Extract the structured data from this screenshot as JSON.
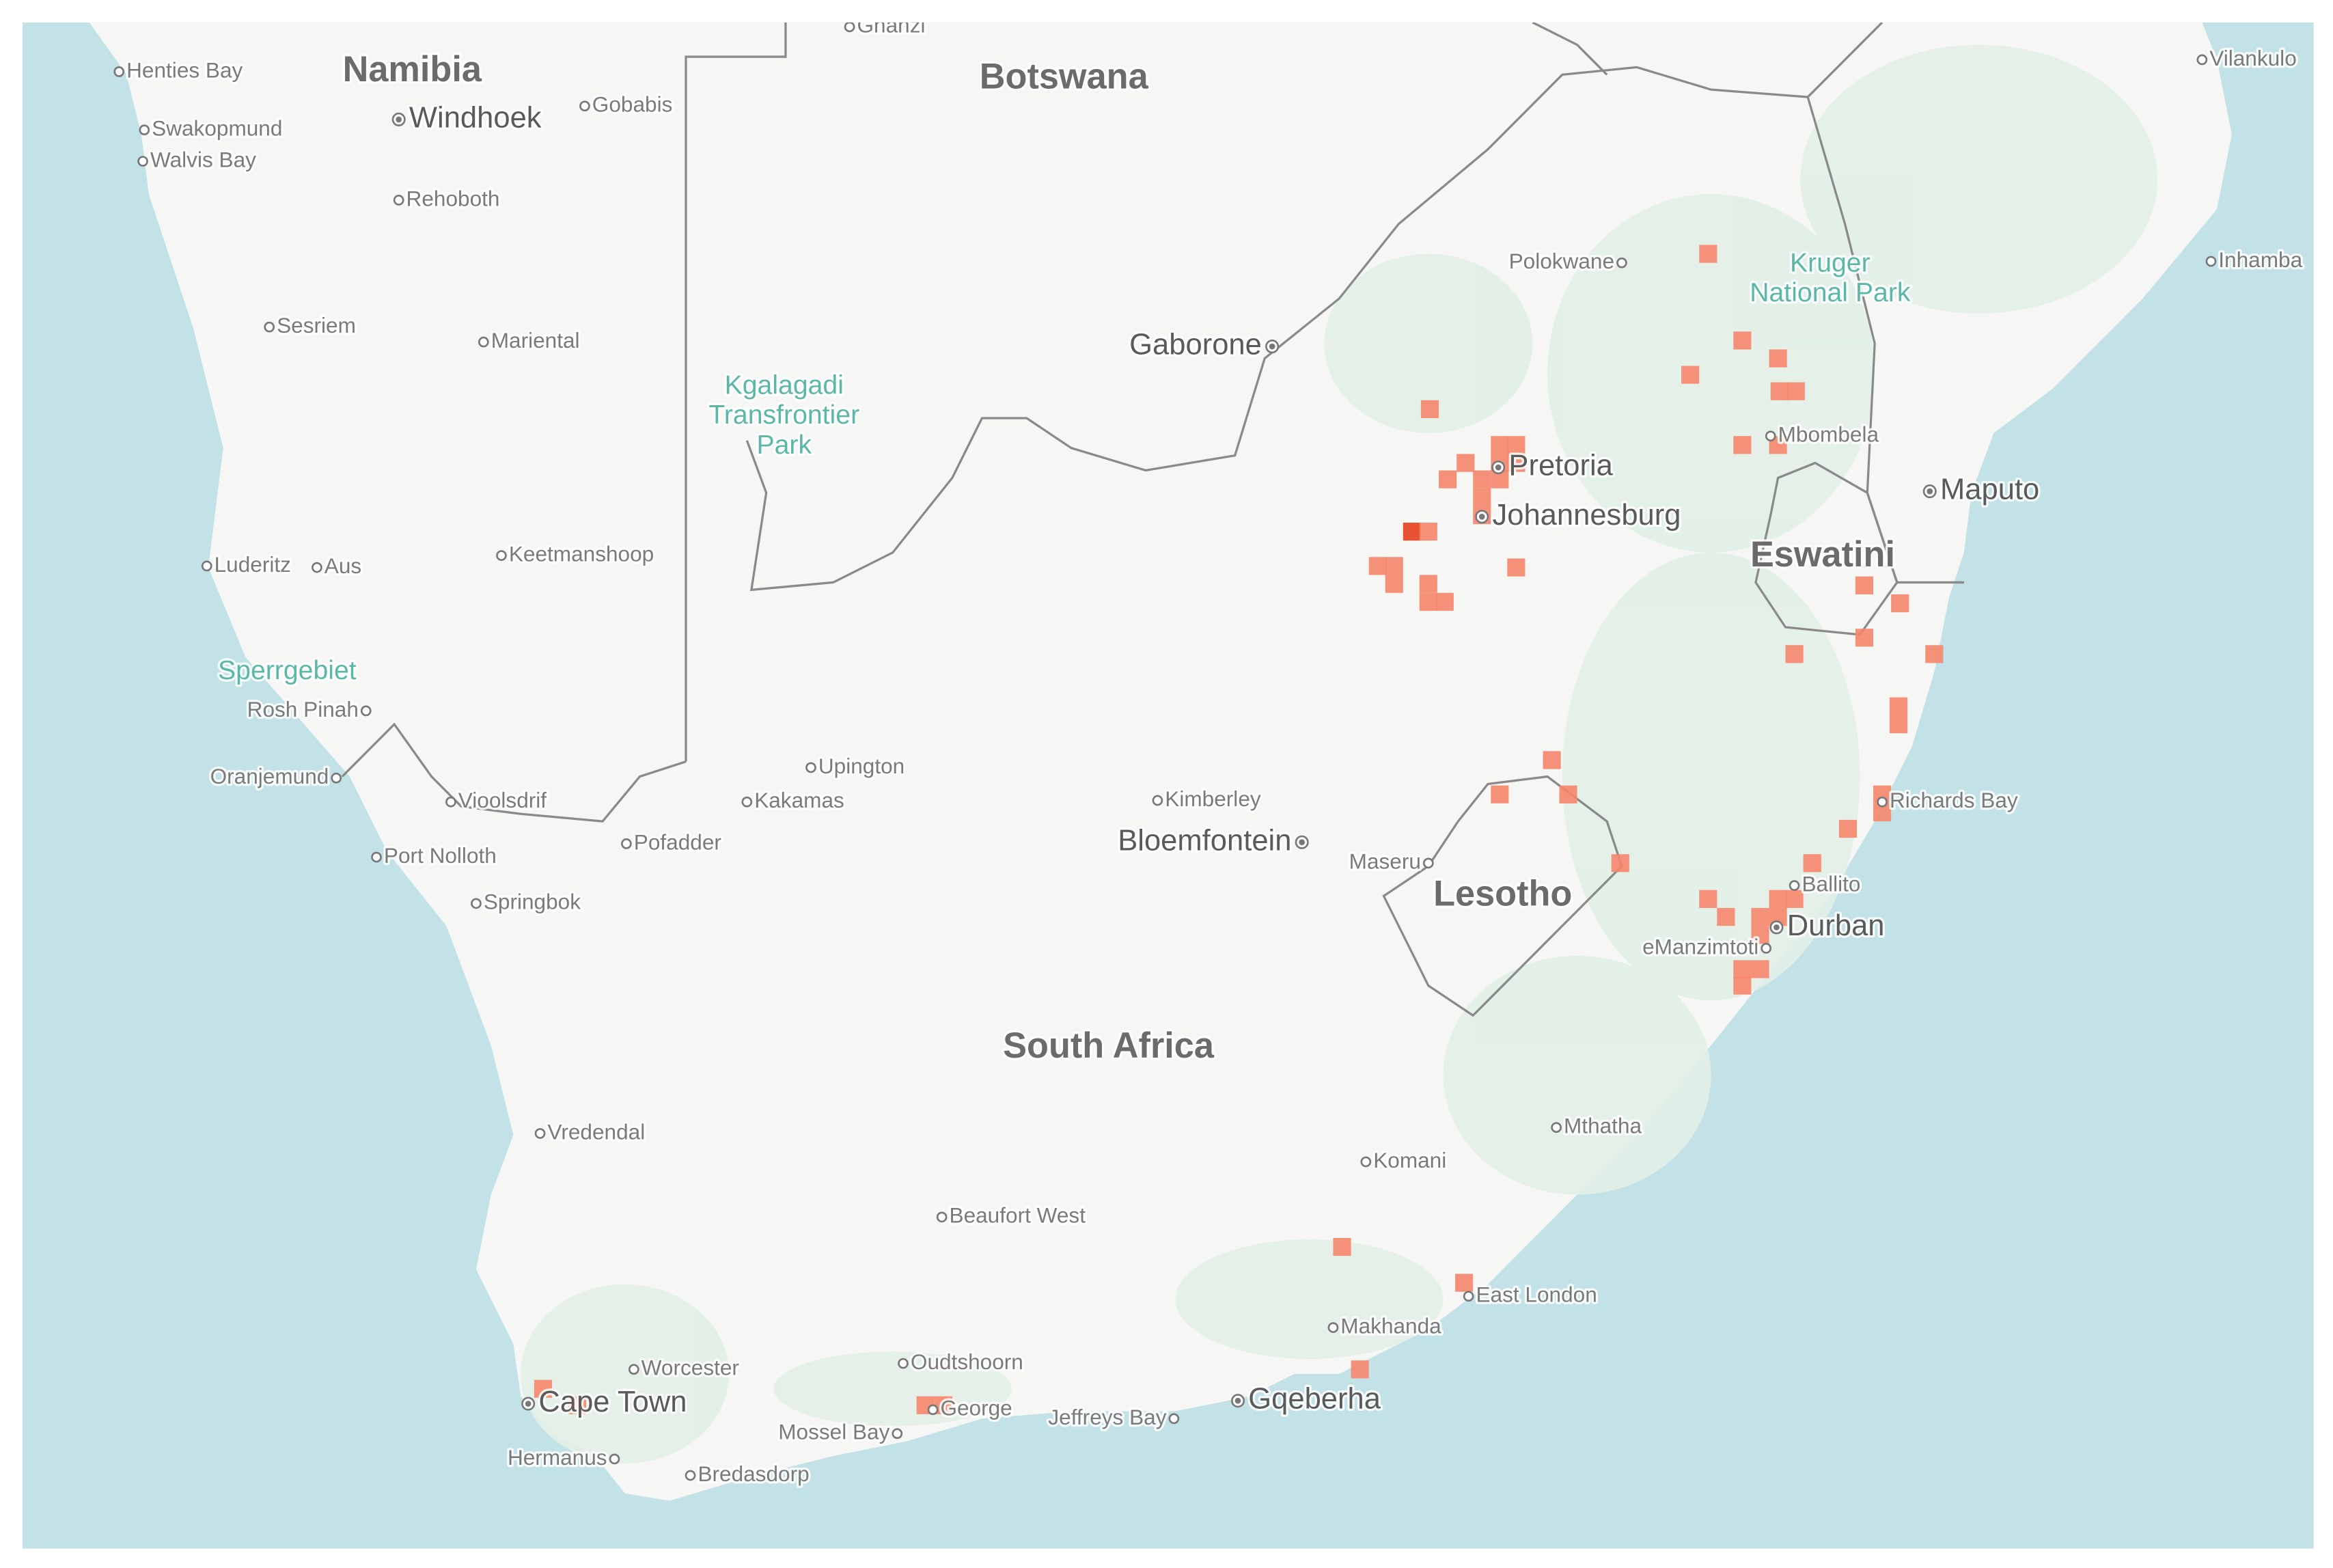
{
  "map": {
    "countries": [
      "Namibia",
      "Botswana",
      "South Africa",
      "Lesotho",
      "Eswatini"
    ],
    "cities": [
      "Windhoek",
      "Gaborone",
      "Pretoria",
      "Johannesburg",
      "Maputo",
      "Bloemfontein",
      "Durban",
      "Cape Town",
      "Gqeberha"
    ],
    "towns": [
      "Henties Bay",
      "Swakopmund",
      "Walvis Bay",
      "Gobabis",
      "Rehoboth",
      "Sesriem",
      "Mariental",
      "Luderitz",
      "Aus",
      "Keetmanshoop",
      "Rosh Pinah",
      "Oranjemund",
      "Vioolsdrif",
      "Port Nolloth",
      "Springbok",
      "Pofadder",
      "Kakamas",
      "Upington",
      "Kimberley",
      "Maseru",
      "Polokwane",
      "Mbombela",
      "Richards Bay",
      "Ballito",
      "eManzimtoti",
      "Mthatha",
      "Komani",
      "Beaufort West",
      "Makhanda",
      "East London",
      "Vredendal",
      "Worcester",
      "Oudtshoorn",
      "George",
      "Jeffreys Bay",
      "Mossel Bay",
      "Hermanus",
      "Bredasdorp",
      "Ghanzi",
      "Vilankulo",
      "Inhamba"
    ],
    "parks": [
      [
        "Kruger",
        "National Park"
      ],
      [
        "Kgalagadi",
        "Transfrontier",
        "Park"
      ],
      [
        "Sperrgebiet"
      ]
    ]
  }
}
